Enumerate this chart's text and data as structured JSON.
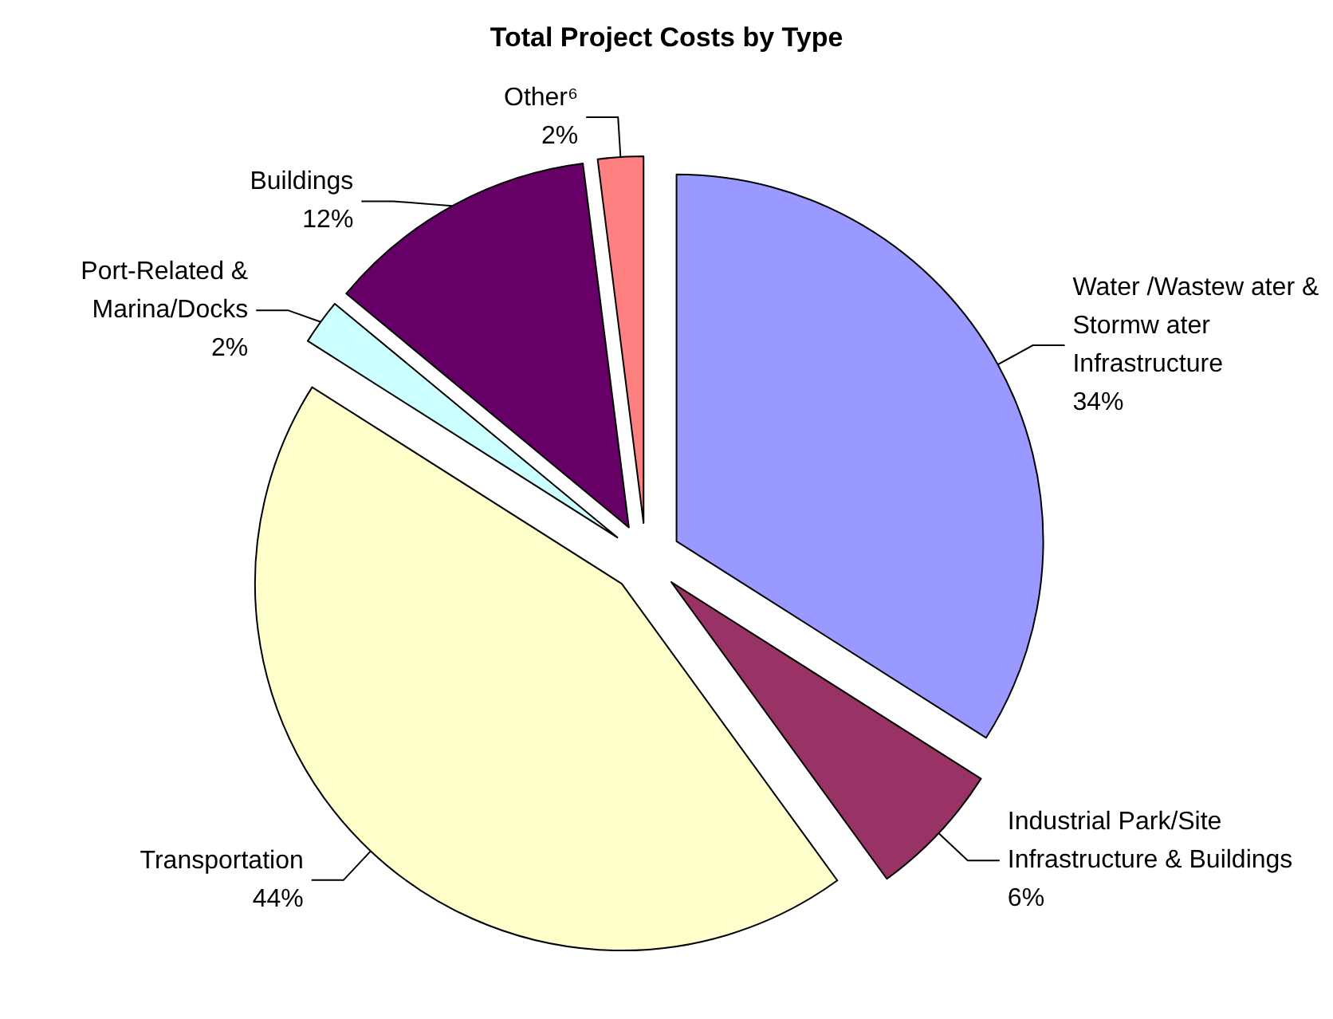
{
  "chart_data": {
    "type": "pie",
    "title": "Total Project Costs by Type",
    "categories": [
      "Water /Wastew ater &\nStormw ater\nInfrastructure",
      "Industrial Park/Site\nInfrastructure & Buildings",
      "Transportation",
      "Port-Related &\nMarina/Docks",
      "Buildings",
      "Other⁶"
    ],
    "values": [
      34,
      6,
      44,
      2,
      12,
      2
    ],
    "colors": [
      "#9999ff",
      "#993366",
      "#ffffcc",
      "#ccffff",
      "#660066",
      "#ff8080"
    ],
    "value_labels": [
      "34%",
      "6%",
      "44%",
      "2%",
      "12%",
      "2%"
    ],
    "legend": false
  }
}
